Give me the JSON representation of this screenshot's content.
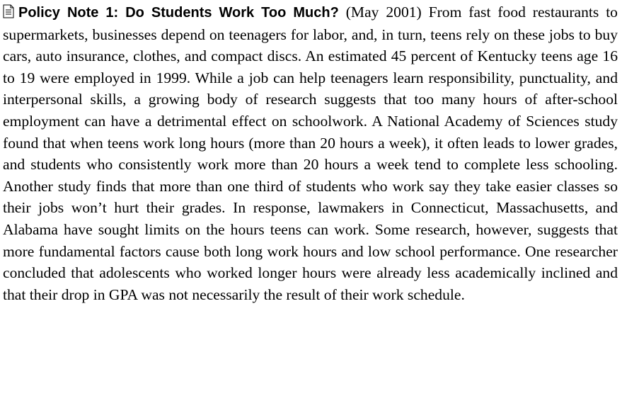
{
  "note": {
    "title": "Policy Note 1: Do Students Work Too Much?",
    "date": "(May 2001)",
    "body": "From fast food restaurants to supermarkets, businesses depend on teenagers for labor, and, in turn, teens rely on these jobs to buy cars, auto insurance, clothes, and compact discs. An estimated 45 percent of Kentucky teens age 16 to 19 were employed in 1999. While a job can help teenagers learn responsibility, punctuality, and interpersonal skills, a growing body of research suggests that too many hours of after-school employment can have a detrimental effect on schoolwork. A National Academy of Sciences study found that when teens work long hours (more than 20 hours a week), it often leads to lower grades, and students who consistently work more than 20 hours a week tend to complete less schooling. Another study finds that more than one third of students who work say they take easier classes so their jobs won’t hurt their grades. In response, lawmakers in Connecticut, Massachusetts, and Alabama have sought limits on the hours teens can work. Some research, however, suggests that more fundamental factors cause both long work hours and low school performance. One researcher concluded that adolescents who worked longer hours were already less academically inclined and that their drop in GPA was not necessarily the result of their work schedule."
  }
}
